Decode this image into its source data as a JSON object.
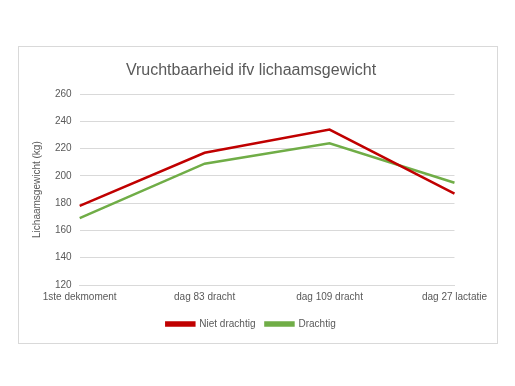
{
  "chart_data": {
    "type": "line",
    "title": "Vruchtbaarheid ifv lichaamsgewicht",
    "y_label": "Lichaamsgewicht (kg)",
    "categories": [
      "1ste dekmoment",
      "dag 83 dracht",
      "dag 109 dracht",
      "dag 27 lactatie"
    ],
    "series": [
      {
        "name": "Niet drachtig",
        "color": "#c00000",
        "values": [
          178,
          217,
          234,
          187
        ]
      },
      {
        "name": "Drachtig",
        "color": "#70ad47",
        "values": [
          169,
          209,
          224,
          195
        ]
      }
    ],
    "ylim": [
      120,
      260
    ],
    "yticks": [
      120,
      140,
      160,
      180,
      200,
      220,
      240,
      260
    ],
    "grid": true,
    "legend": "bottom"
  }
}
